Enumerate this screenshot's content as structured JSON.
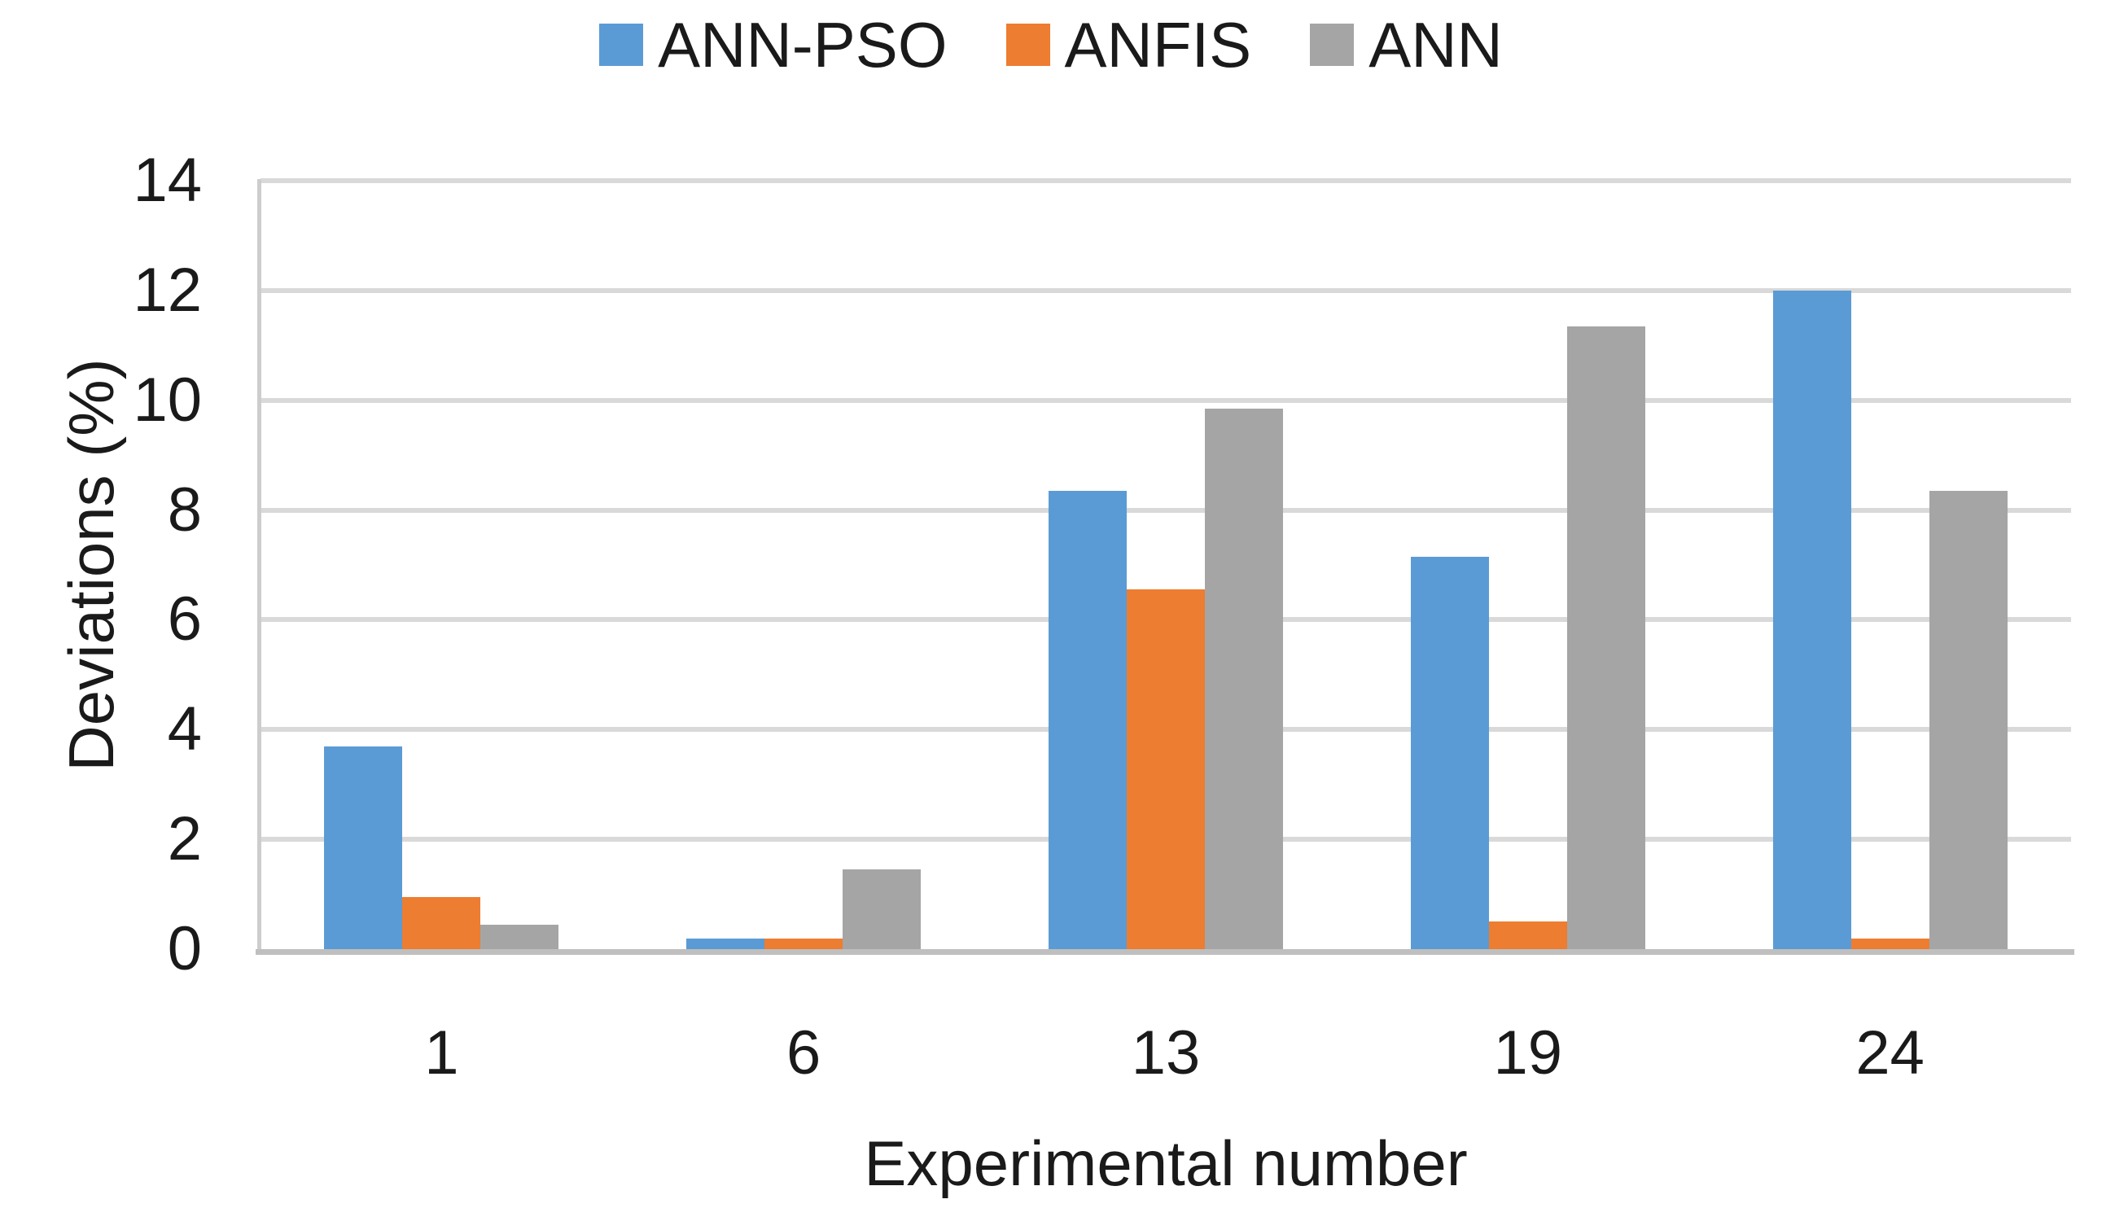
{
  "figure": {
    "background": "#FFFFFF",
    "text_color": "#1a1a1a"
  },
  "chart_data": {
    "type": "bar",
    "title": "",
    "xlabel": "Experimental number",
    "ylabel": "Deviations (%)",
    "categories": [
      "1",
      "6",
      "13",
      "19",
      "24"
    ],
    "series": [
      {
        "name": "ANN-PSO",
        "color": "#5B9BD5",
        "values": [
          3.7,
          0.2,
          8.35,
          7.15,
          12.0
        ]
      },
      {
        "name": "ANFIS",
        "color": "#ED7D31",
        "values": [
          0.95,
          0.2,
          6.55,
          0.5,
          0.2
        ]
      },
      {
        "name": "ANN",
        "color": "#A5A5A5",
        "values": [
          0.45,
          1.45,
          9.85,
          11.35,
          8.35
        ]
      }
    ],
    "ylim": [
      0,
      14
    ],
    "yticks": [
      0,
      2,
      4,
      6,
      8,
      10,
      12,
      14
    ],
    "grid": true,
    "legend_position": "top"
  }
}
